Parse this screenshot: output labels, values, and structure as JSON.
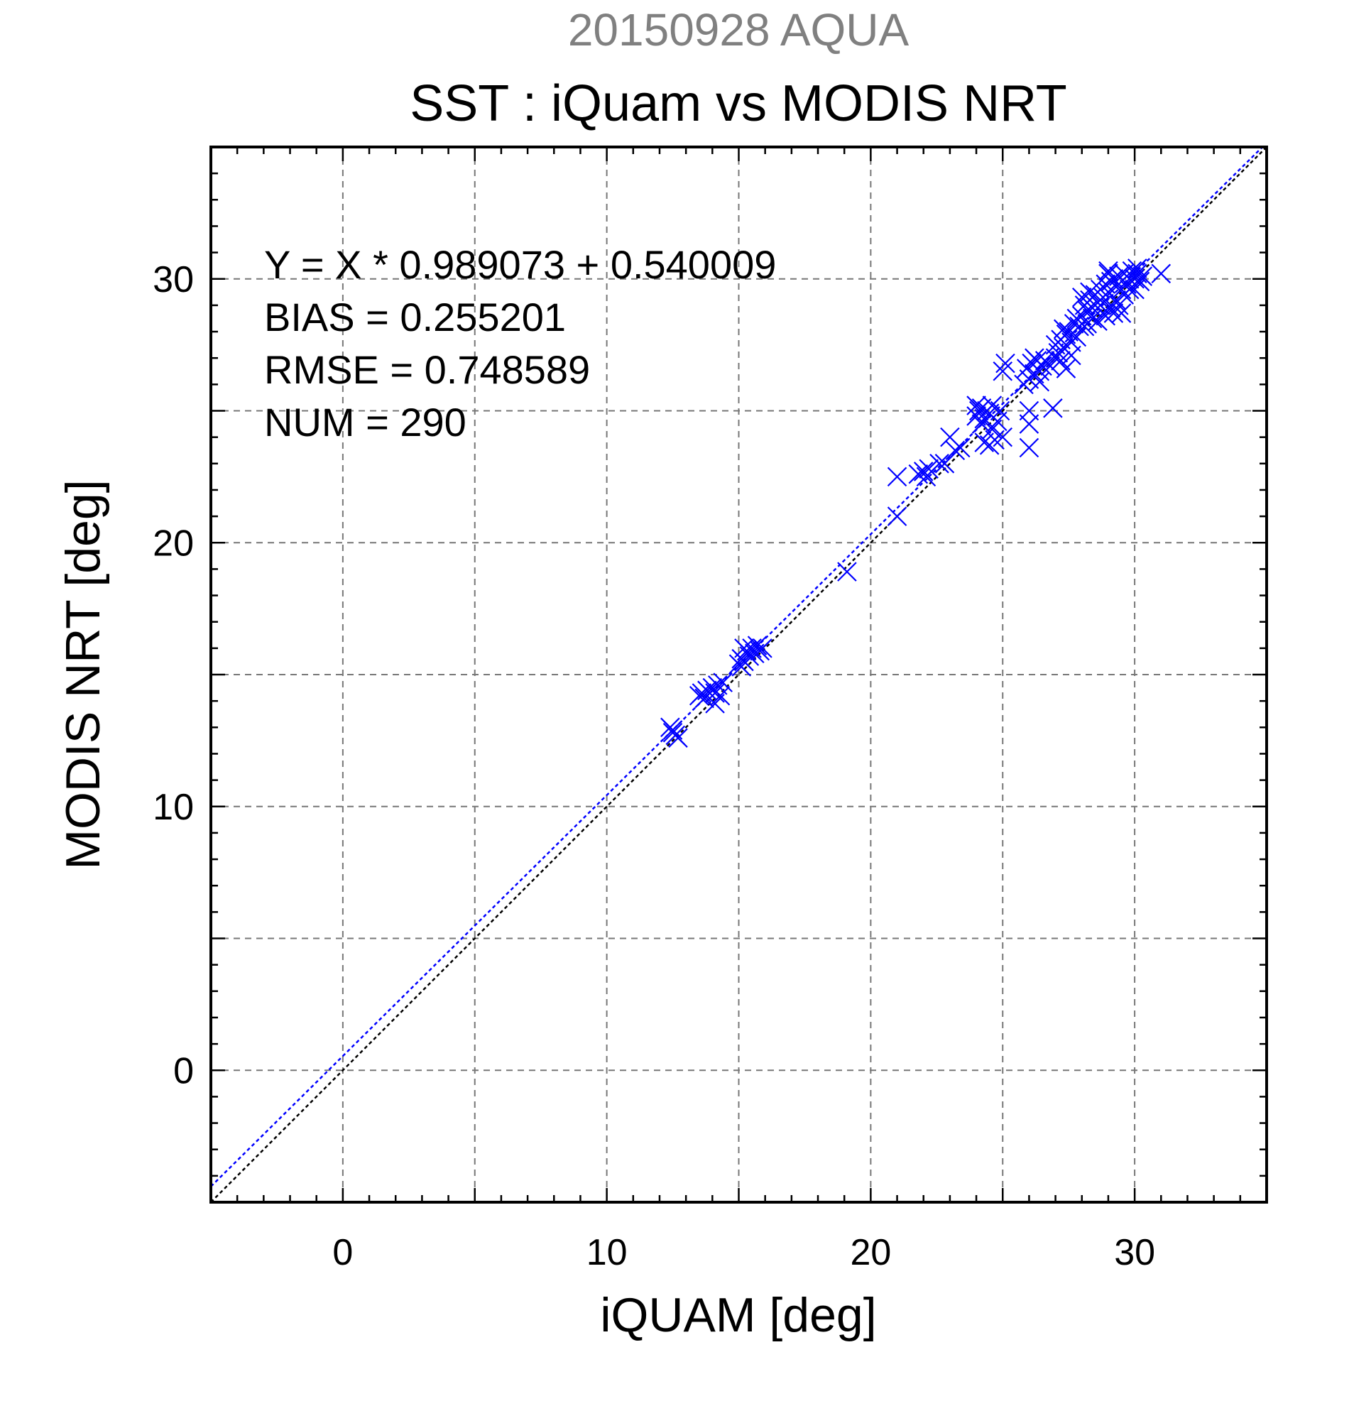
{
  "chart_data": {
    "type": "scatter",
    "date_title": "20150928 AQUA",
    "title": "SST : iQuam vs MODIS NRT",
    "xlabel": "iQUAM [deg]",
    "ylabel": "MODIS NRT [deg]",
    "xlim": [
      -5,
      35
    ],
    "ylim": [
      -5,
      35
    ],
    "xticks": [
      0,
      10,
      20,
      30
    ],
    "yticks": [
      0,
      10,
      20,
      30
    ],
    "grid": true,
    "colors": {
      "points": "#0000ff",
      "fit_line": "#0000ff",
      "one_to_one_line": "#000000",
      "date_title": "#808080"
    },
    "stats": {
      "equation": "Y = X * 0.989073 + 0.540009",
      "bias": "BIAS = 0.255201",
      "rmse": "RMSE = 0.748589",
      "num": "NUM = 290"
    },
    "fit": {
      "slope": 0.989073,
      "intercept": 0.540009
    },
    "reference_line": {
      "slope": 1,
      "intercept": 0
    },
    "series": [
      {
        "marker": "x",
        "points": [
          [
            12.4,
            13.0
          ],
          [
            12.5,
            12.8
          ],
          [
            12.6,
            12.7
          ],
          [
            12.7,
            12.6
          ],
          [
            12.5,
            12.9
          ],
          [
            13.5,
            14.2
          ],
          [
            13.6,
            14.3
          ],
          [
            13.7,
            14.1
          ],
          [
            13.8,
            14.4
          ],
          [
            14.0,
            14.5
          ],
          [
            14.1,
            14.3
          ],
          [
            14.2,
            14.6
          ],
          [
            14.3,
            14.2
          ],
          [
            14.1,
            13.9
          ],
          [
            14.4,
            14.7
          ],
          [
            15.0,
            15.4
          ],
          [
            15.1,
            15.6
          ],
          [
            15.2,
            15.5
          ],
          [
            15.3,
            15.9
          ],
          [
            15.4,
            15.7
          ],
          [
            15.5,
            16.0
          ],
          [
            15.6,
            15.8
          ],
          [
            15.7,
            16.1
          ],
          [
            15.8,
            15.9
          ],
          [
            15.2,
            16.0
          ],
          [
            15.1,
            15.3
          ],
          [
            15.9,
            16.0
          ],
          [
            19.1,
            18.9
          ],
          [
            21.0,
            21.0
          ],
          [
            21.0,
            22.5
          ],
          [
            21.8,
            22.6
          ],
          [
            22.0,
            22.7
          ],
          [
            22.2,
            22.8
          ],
          [
            22.1,
            22.5
          ],
          [
            22.6,
            23.0
          ],
          [
            22.8,
            23.0
          ],
          [
            23.0,
            24.0
          ],
          [
            23.2,
            23.5
          ],
          [
            23.4,
            23.6
          ],
          [
            24.0,
            24.8
          ],
          [
            24.1,
            25.0
          ],
          [
            24.2,
            25.1
          ],
          [
            24.3,
            24.7
          ],
          [
            24.4,
            25.0
          ],
          [
            24.5,
            24.9
          ],
          [
            24.6,
            25.2
          ],
          [
            24.2,
            24.5
          ],
          [
            24.0,
            25.2
          ],
          [
            24.3,
            23.8
          ],
          [
            24.5,
            23.7
          ],
          [
            24.7,
            23.9
          ],
          [
            24.8,
            24.6
          ],
          [
            24.9,
            25.0
          ],
          [
            25.0,
            26.5
          ],
          [
            25.1,
            26.8
          ],
          [
            25.0,
            24.0
          ],
          [
            24.6,
            24.3
          ],
          [
            25.8,
            26.0
          ],
          [
            25.9,
            26.6
          ],
          [
            26.0,
            26.2
          ],
          [
            26.1,
            26.8
          ],
          [
            26.2,
            26.4
          ],
          [
            26.3,
            26.9
          ],
          [
            26.4,
            26.5
          ],
          [
            26.5,
            26.7
          ],
          [
            26.0,
            25.0
          ],
          [
            26.0,
            24.5
          ],
          [
            26.0,
            23.6
          ],
          [
            26.2,
            27.0
          ],
          [
            26.6,
            26.9
          ],
          [
            26.8,
            26.7
          ],
          [
            26.9,
            25.1
          ],
          [
            26.4,
            26.1
          ],
          [
            27.0,
            27.5
          ],
          [
            27.1,
            27.2
          ],
          [
            27.2,
            27.7
          ],
          [
            27.3,
            27.4
          ],
          [
            27.4,
            27.9
          ],
          [
            27.5,
            28.0
          ],
          [
            27.6,
            27.6
          ],
          [
            27.7,
            28.3
          ],
          [
            27.8,
            28.5
          ],
          [
            27.9,
            28.2
          ],
          [
            27.2,
            26.9
          ],
          [
            27.4,
            26.6
          ],
          [
            27.6,
            27.1
          ],
          [
            27.0,
            27.0
          ],
          [
            27.3,
            28.1
          ],
          [
            27.8,
            27.8
          ],
          [
            28.0,
            28.6
          ],
          [
            28.1,
            29.0
          ],
          [
            28.2,
            28.8
          ],
          [
            28.3,
            29.2
          ],
          [
            28.4,
            28.9
          ],
          [
            28.5,
            29.4
          ],
          [
            28.6,
            29.1
          ],
          [
            28.7,
            29.6
          ],
          [
            28.8,
            29.3
          ],
          [
            28.9,
            29.8
          ],
          [
            28.2,
            28.3
          ],
          [
            28.4,
            28.5
          ],
          [
            28.6,
            28.4
          ],
          [
            28.8,
            28.7
          ],
          [
            28.0,
            29.3
          ],
          [
            28.3,
            29.5
          ],
          [
            28.7,
            29.0
          ],
          [
            28.1,
            28.2
          ],
          [
            29.0,
            29.5
          ],
          [
            29.1,
            29.9
          ],
          [
            29.2,
            30.0
          ],
          [
            29.3,
            29.7
          ],
          [
            29.4,
            30.1
          ],
          [
            29.5,
            29.6
          ],
          [
            29.6,
            30.2
          ],
          [
            29.7,
            29.8
          ],
          [
            29.8,
            30.0
          ],
          [
            29.9,
            30.3
          ],
          [
            29.0,
            30.3
          ],
          [
            29.1,
            28.9
          ],
          [
            29.3,
            29.2
          ],
          [
            29.5,
            28.7
          ],
          [
            29.6,
            29.4
          ],
          [
            29.8,
            29.6
          ],
          [
            29.2,
            28.7
          ],
          [
            29.4,
            29.0
          ],
          [
            28.9,
            28.6
          ],
          [
            29.0,
            30.2
          ],
          [
            30.0,
            30.0
          ],
          [
            30.1,
            30.2
          ],
          [
            30.2,
            29.9
          ],
          [
            30.0,
            29.6
          ],
          [
            30.1,
            30.4
          ],
          [
            30.3,
            30.1
          ],
          [
            31.0,
            30.2
          ]
        ]
      }
    ]
  }
}
